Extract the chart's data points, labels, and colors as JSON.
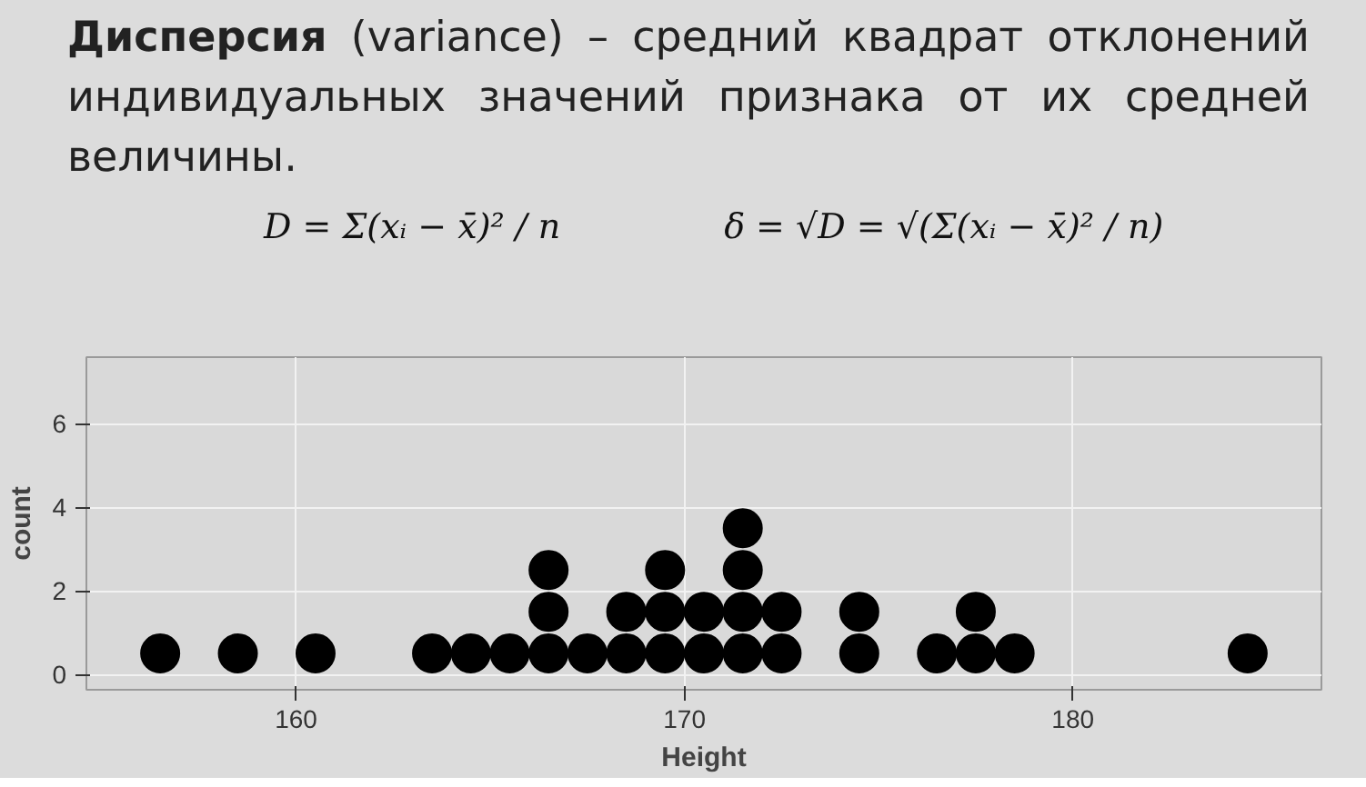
{
  "chart_data": {
    "type": "scatter",
    "title": "Дисперсия",
    "subtitle": "(variance) – средний квадрат отклонений индивидуальных значений признака от их средней величины.",
    "annotations": [
      "D = Σ(xᵢ − x̄)² / n",
      "δ = √D = √(Σ(xᵢ − x̄)² / n)"
    ],
    "xlabel": "Height",
    "ylabel": "count",
    "series": [
      {
        "color": "#000000",
        "x": [
          156.5,
          158.5,
          160.5,
          163.5,
          164.5,
          165.5,
          166.5,
          166.5,
          166.5,
          167.5,
          168.5,
          168.5,
          169.5,
          169.5,
          169.5,
          170.5,
          170.5,
          171.5,
          171.5,
          171.5,
          171.5,
          172.5,
          172.5,
          174.5,
          174.5,
          176.5,
          177.5,
          177.5,
          178.5,
          184.5
        ],
        "values": [
          0.5,
          0.5,
          0.5,
          0.5,
          0.5,
          0.5,
          0.5,
          1.5,
          2.5,
          0.5,
          0.5,
          1.5,
          0.5,
          1.5,
          2.5,
          0.5,
          1.5,
          0.5,
          1.5,
          2.5,
          3.5,
          0.5,
          1.5,
          0.5,
          1.5,
          0.5,
          0.5,
          1.5,
          0.5,
          0.5
        ]
      }
    ],
    "xlim": [
      154.6,
      186.4
    ],
    "ylim": [
      -0.37,
      7.6
    ],
    "xticks": [
      160,
      170,
      180
    ],
    "yticks": [
      0,
      2,
      4,
      6
    ],
    "grid": true,
    "marker": "circle"
  }
}
